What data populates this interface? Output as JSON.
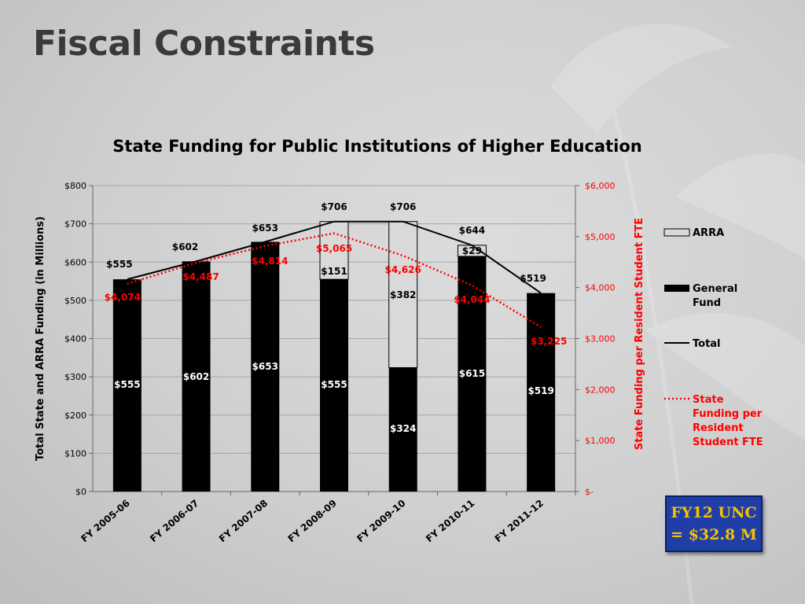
{
  "slide": {
    "title": "Fiscal Constraints"
  },
  "callout": {
    "line1": "FY12 UNC",
    "line2": "= $32.8 M"
  },
  "colors": {
    "general_fund": "#000000",
    "arra": "#d9d9d9",
    "total_line": "#000000",
    "fte_line": "#ff0000",
    "callout_bg": "#1f3ea8",
    "callout_text": "#f5c200"
  },
  "chart_data": {
    "type": "bar",
    "title": "State Funding for Public Institutions of Higher Education",
    "ylabel": "Total State and ARRA Funding (in Millions)",
    "y2label": "State Funding per Resident Student FTE",
    "ylim": [
      0,
      800
    ],
    "y2lim": [
      0,
      6000
    ],
    "yticks": [
      "$0",
      "$100",
      "$200",
      "$300",
      "$400",
      "$500",
      "$600",
      "$700",
      "$800"
    ],
    "y2ticks": [
      "$-",
      "$1,000",
      "$2,000",
      "$3,000",
      "$4,000",
      "$5,000",
      "$6,000"
    ],
    "categories": [
      "FY 2005-06",
      "FY 2006-07",
      "FY 2007-08",
      "FY 2008-09",
      "FY 2009-10",
      "FY 2010-11",
      "FY 2011-12"
    ],
    "series": [
      {
        "name": "ARRA",
        "kind": "stacked-bar",
        "values": [
          0,
          0,
          0,
          151,
          382,
          29,
          0
        ],
        "labels": [
          "",
          "",
          "",
          "$151",
          "$382",
          "$29",
          ""
        ]
      },
      {
        "name": "General Fund",
        "kind": "stacked-bar",
        "values": [
          555,
          602,
          653,
          555,
          324,
          615,
          519
        ],
        "labels": [
          "$555",
          "$602",
          "$653",
          "$555",
          "$324",
          "$615",
          "$519"
        ]
      },
      {
        "name": "Total",
        "kind": "line",
        "values": [
          555,
          602,
          653,
          706,
          706,
          644,
          519
        ],
        "labels": [
          "$555",
          "$602",
          "$653",
          "$706",
          "$706",
          "$644",
          "$519"
        ]
      },
      {
        "name": "State Funding per Resident Student FTE",
        "kind": "dotted-line",
        "axis": "y2",
        "values": [
          4074,
          4487,
          4814,
          5065,
          4626,
          4044,
          3225
        ],
        "labels": [
          "$4,074",
          "$4,487",
          "$4,814",
          "$5,065",
          "$4,626",
          "$4,044",
          "$3,225"
        ]
      }
    ],
    "legend": {
      "position": "right",
      "entries": [
        {
          "key": "arra",
          "lines": [
            "ARRA"
          ]
        },
        {
          "key": "general_fund",
          "lines": [
            "General",
            "Fund"
          ]
        },
        {
          "key": "total",
          "lines": [
            "Total"
          ]
        },
        {
          "key": "fte",
          "lines": [
            "State",
            "Funding per",
            "Resident",
            "Student FTE"
          ]
        }
      ]
    }
  }
}
